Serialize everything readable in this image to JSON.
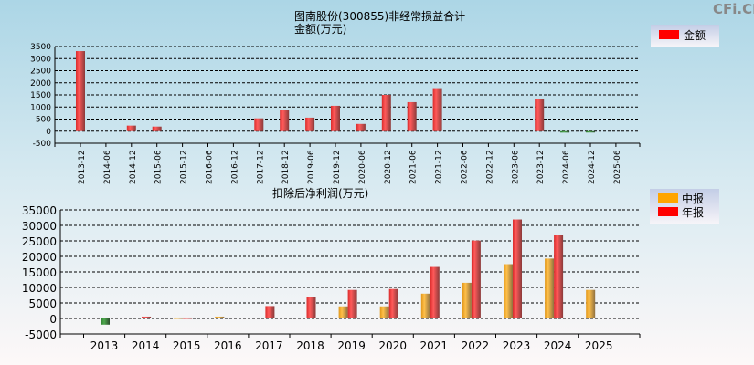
{
  "watermark": "CFi.CN",
  "chart_data": [
    {
      "type": "bar",
      "title": "图南股份(300855)非经常损益合计",
      "subtitle": "金额(万元)",
      "legend": [
        {
          "label": "金额",
          "color": "#ff0000"
        }
      ],
      "legend_position": "top-right",
      "categories": [
        "2013-12",
        "2014-06",
        "2014-12",
        "2015-06",
        "2015-12",
        "2016-06",
        "2016-12",
        "2017-12",
        "2018-12",
        "2019-06",
        "2019-12",
        "2020-06",
        "2020-12",
        "2021-06",
        "2021-12",
        "2022-06",
        "2022-12",
        "2023-06",
        "2023-12",
        "2024-06",
        "2024-12",
        "2025-06"
      ],
      "values": [
        3310,
        0,
        230,
        190,
        0,
        0,
        0,
        530,
        870,
        560,
        1050,
        300,
        1500,
        1200,
        1780,
        0,
        0,
        0,
        1320,
        -60,
        -20,
        0
      ],
      "ylim": [
        -500,
        3500
      ],
      "yticks": [
        -500,
        0,
        500,
        1000,
        1500,
        2000,
        2500,
        3000,
        3500
      ],
      "grid": true
    },
    {
      "type": "bar",
      "title": "扣除后净利润(万元)",
      "legend_position": "top-right",
      "categories": [
        "2013",
        "2014",
        "2015",
        "2016",
        "2017",
        "2018",
        "2019",
        "2020",
        "2021",
        "2022",
        "2023",
        "2024",
        "2025"
      ],
      "series": [
        {
          "name": "中报",
          "color": "#ffa500",
          "values": [
            null,
            null,
            300,
            600,
            null,
            null,
            3900,
            3900,
            8000,
            11500,
            17500,
            19300,
            9200
          ]
        },
        {
          "name": "年报",
          "color": "#ff0000",
          "values": [
            -2000,
            600,
            300,
            null,
            4000,
            6900,
            9200,
            9500,
            16600,
            25100,
            31900,
            26900,
            null
          ]
        }
      ],
      "ylim": [
        -5000,
        35000
      ],
      "yticks": [
        -5000,
        0,
        5000,
        10000,
        15000,
        20000,
        25000,
        30000,
        35000
      ],
      "grid": true
    }
  ]
}
